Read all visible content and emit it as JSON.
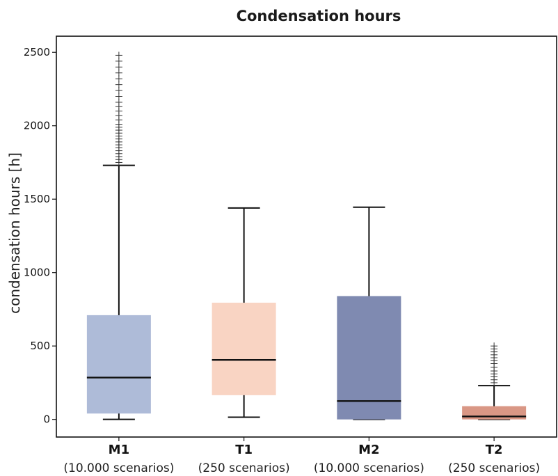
{
  "chart_data": {
    "type": "box",
    "title": "Condensation hours",
    "ylabel": "condensation hours [h]",
    "xlabel": "",
    "ylim": [
      -120,
      2610
    ],
    "yticks": [
      "0",
      "500",
      "1000",
      "1500",
      "2000",
      "2500"
    ],
    "grid": false,
    "categories": [
      {
        "name": "M1",
        "subtitle": "(10.000 scenarios)",
        "color": "#aebbd8",
        "whisker_low": 0,
        "q1": 40,
        "median": 285,
        "q3": 710,
        "whisker_high": 1730,
        "outliers": [
          1750,
          1770,
          1790,
          1810,
          1830,
          1850,
          1870,
          1890,
          1910,
          1930,
          1950,
          1970,
          1990,
          2010,
          2040,
          2070,
          2100,
          2130,
          2160,
          2200,
          2240,
          2280,
          2320,
          2360,
          2400,
          2440,
          2480
        ]
      },
      {
        "name": "T1",
        "subtitle": "(250 scenarios)",
        "color": "#f9d4c3",
        "whisker_low": 15,
        "q1": 165,
        "median": 405,
        "q3": 795,
        "whisker_high": 1440,
        "outliers": []
      },
      {
        "name": "M2",
        "subtitle": "(10.000 scenarios)",
        "color": "#7f8ab1",
        "whisker_low": 0,
        "q1": 0,
        "median": 125,
        "q3": 840,
        "whisker_high": 1445,
        "outliers": []
      },
      {
        "name": "T2",
        "subtitle": "(250 scenarios)",
        "color": "#d99785",
        "whisker_low": 0,
        "q1": 0,
        "median": 20,
        "q3": 90,
        "whisker_high": 230,
        "outliers": [
          250,
          270,
          290,
          310,
          330,
          355,
          380,
          400,
          420,
          440,
          460,
          480,
          500
        ]
      }
    ]
  }
}
